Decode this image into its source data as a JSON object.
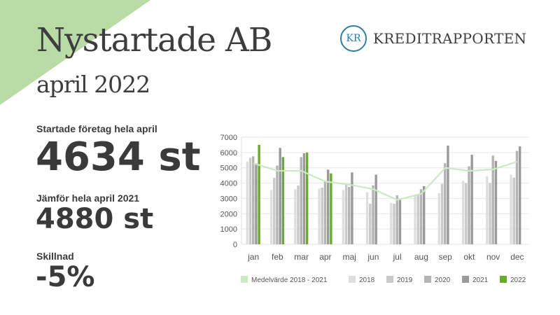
{
  "header": {
    "title": "Nystartade AB",
    "subtitle": "april 2022"
  },
  "logo": {
    "monogram": "KR",
    "name": "KREDITRAPPORTEN",
    "color": "#2e7fa1"
  },
  "stats": {
    "started_label": "Startade företag hela april",
    "started_value": "4634 st",
    "compare_label": "Jämför hela april 2021",
    "compare_value": "4880 st",
    "diff_label": "Skillnad",
    "diff_value": "-5%"
  },
  "colors": {
    "corner": "#b9dba6",
    "avg_line": "#cde8c4"
  },
  "chart_data": {
    "type": "bar",
    "categories": [
      "jan",
      "feb",
      "mar",
      "apr",
      "maj",
      "jun",
      "jul",
      "aug",
      "sep",
      "okt",
      "nov",
      "dec"
    ],
    "ylim": [
      0,
      7000
    ],
    "yticks": [
      0,
      1000,
      2000,
      3000,
      4000,
      5000,
      6000,
      7000
    ],
    "grid": true,
    "legend_position": "bottom",
    "series": [
      {
        "name": "2018",
        "color": "#dedede",
        "values": [
          5400,
          3550,
          3600,
          3650,
          3550,
          3400,
          2700,
          3150,
          3350,
          4150,
          4450,
          4550
        ]
      },
      {
        "name": "2019",
        "color": "#cacaca",
        "values": [
          5650,
          4350,
          3850,
          3700,
          3900,
          2650,
          2650,
          3250,
          3950,
          4000,
          4000,
          4350
        ]
      },
      {
        "name": "2020",
        "color": "#b4b4b4",
        "values": [
          5750,
          5150,
          5700,
          4150,
          3750,
          3850,
          3200,
          3600,
          5300,
          5100,
          5800,
          6100
        ]
      },
      {
        "name": "2021",
        "color": "#9a9a9a",
        "values": [
          5300,
          6300,
          5950,
          4880,
          4700,
          4550,
          2950,
          3800,
          6450,
          5850,
          5450,
          6400
        ]
      },
      {
        "name": "2022",
        "color": "#6aaa2e",
        "values": [
          6500,
          5700,
          6000,
          4634,
          null,
          null,
          null,
          null,
          null,
          null,
          null,
          null
        ]
      }
    ],
    "line": {
      "name": "Medelvärde 2018 - 2021",
      "color": "#cde8c4",
      "values": [
        5300,
        4800,
        4800,
        4100,
        3900,
        3600,
        2900,
        3300,
        5000,
        4800,
        4900,
        5400
      ]
    }
  }
}
